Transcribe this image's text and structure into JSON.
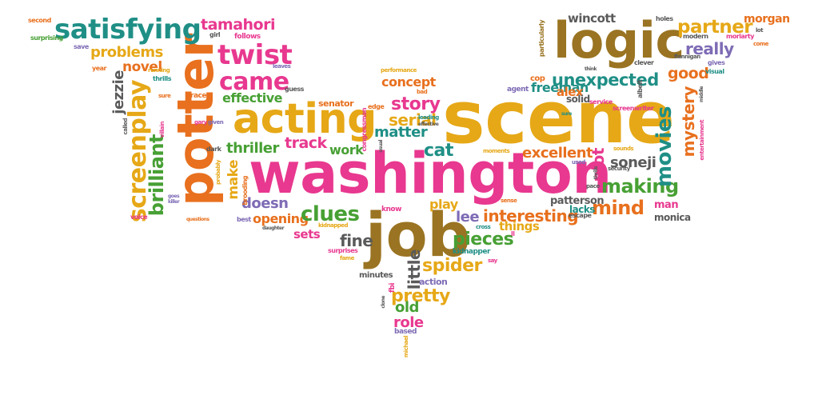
{
  "colors": {
    "pink": "#e8388f",
    "orange": "#e8701e",
    "gold": "#e6a817",
    "brown": "#9a7422",
    "green": "#47a034",
    "teal": "#1f8f86",
    "grey": "#5a5a5a",
    "purple": "#7e6bb5"
  },
  "words": [
    {
      "id": "scene",
      "text": "scene",
      "color": "gold"
    },
    {
      "id": "washington",
      "text": "washington",
      "color": "pink"
    },
    {
      "id": "potter",
      "text": "potter",
      "color": "orange"
    },
    {
      "id": "logic",
      "text": "logic",
      "color": "brown"
    },
    {
      "id": "job",
      "text": "job",
      "color": "brown"
    },
    {
      "id": "acting",
      "text": "acting",
      "color": "gold"
    },
    {
      "id": "satisfying",
      "text": "satisfying",
      "color": "teal"
    },
    {
      "id": "twist",
      "text": "twist",
      "color": "pink"
    },
    {
      "id": "came",
      "text": "came",
      "color": "pink"
    },
    {
      "id": "screenplay",
      "text": "screenplay",
      "color": "gold"
    },
    {
      "id": "brilliant",
      "text": "brilliant",
      "color": "green"
    },
    {
      "id": "tamahori",
      "text": "tamahori",
      "color": "pink"
    },
    {
      "id": "problems",
      "text": "problems",
      "color": "gold"
    },
    {
      "id": "novel",
      "text": "novel",
      "color": "orange"
    },
    {
      "id": "jezzie",
      "text": "jezzie",
      "color": "grey"
    },
    {
      "id": "effective",
      "text": "effective",
      "color": "green"
    },
    {
      "id": "thriller",
      "text": "thriller",
      "color": "green"
    },
    {
      "id": "track",
      "text": "track",
      "color": "pink"
    },
    {
      "id": "make",
      "text": "make",
      "color": "gold"
    },
    {
      "id": "doesn",
      "text": "doesn",
      "color": "purple"
    },
    {
      "id": "opening",
      "text": "opening",
      "color": "orange"
    },
    {
      "id": "clues",
      "text": "clues",
      "color": "green"
    },
    {
      "id": "sets",
      "text": "sets",
      "color": "pink"
    },
    {
      "id": "fine",
      "text": "fine",
      "color": "grey"
    },
    {
      "id": "little",
      "text": "little",
      "color": "grey"
    },
    {
      "id": "pieces",
      "text": "pieces",
      "color": "green"
    },
    {
      "id": "spider",
      "text": "spider",
      "color": "gold"
    },
    {
      "id": "pretty",
      "text": "pretty",
      "color": "gold"
    },
    {
      "id": "old",
      "text": "old",
      "color": "green"
    },
    {
      "id": "role",
      "text": "role",
      "color": "pink"
    },
    {
      "id": "story",
      "text": "story",
      "color": "pink"
    },
    {
      "id": "serial",
      "text": "serial",
      "color": "gold"
    },
    {
      "id": "matter",
      "text": "matter",
      "color": "teal"
    },
    {
      "id": "concept",
      "text": "concept",
      "color": "orange"
    },
    {
      "id": "work",
      "text": "work",
      "color": "green"
    },
    {
      "id": "cat",
      "text": "cat",
      "color": "teal"
    },
    {
      "id": "play",
      "text": "play",
      "color": "gold"
    },
    {
      "id": "lee",
      "text": "lee",
      "color": "purple"
    },
    {
      "id": "interesting",
      "text": "interesting",
      "color": "orange"
    },
    {
      "id": "things",
      "text": "things",
      "color": "gold"
    },
    {
      "id": "excellent",
      "text": "excellent",
      "color": "orange"
    },
    {
      "id": "plot",
      "text": "plot",
      "color": "pink"
    },
    {
      "id": "soneji",
      "text": "soneji",
      "color": "grey"
    },
    {
      "id": "making",
      "text": "making",
      "color": "green"
    },
    {
      "id": "mind",
      "text": "mind",
      "color": "orange"
    },
    {
      "id": "movies",
      "text": "movies",
      "color": "teal"
    },
    {
      "id": "mystery",
      "text": "mystery",
      "color": "orange"
    },
    {
      "id": "unexpected",
      "text": "unexpected",
      "color": "teal"
    },
    {
      "id": "freeman",
      "text": "freeman",
      "color": "teal"
    },
    {
      "id": "alex",
      "text": "alex",
      "color": "orange"
    },
    {
      "id": "solid",
      "text": "solid",
      "color": "grey"
    },
    {
      "id": "good",
      "text": "good",
      "color": "orange"
    },
    {
      "id": "really",
      "text": "really",
      "color": "purple"
    },
    {
      "id": "partner",
      "text": "partner",
      "color": "gold"
    },
    {
      "id": "wincott",
      "text": "wincott",
      "color": "grey"
    },
    {
      "id": "morgan",
      "text": "morgan",
      "color": "orange"
    },
    {
      "id": "patterson",
      "text": "patterson",
      "color": "grey"
    },
    {
      "id": "lacks",
      "text": "lacks",
      "color": "teal"
    },
    {
      "id": "man",
      "text": "man",
      "color": "pink"
    },
    {
      "id": "monica",
      "text": "monica",
      "color": "grey"
    },
    {
      "id": "kidnapper",
      "text": "kidnapper",
      "color": "teal"
    },
    {
      "id": "minutes",
      "text": "minutes",
      "color": "grey"
    },
    {
      "id": "action",
      "text": "action",
      "color": "purple"
    },
    {
      "id": "based",
      "text": "based",
      "color": "purple"
    },
    {
      "id": "senator",
      "text": "senator",
      "color": "orange"
    },
    {
      "id": "cop",
      "text": "cop",
      "color": "orange"
    },
    {
      "id": "agent",
      "text": "agent",
      "color": "purple"
    },
    {
      "id": "second",
      "text": "second",
      "color": "orange"
    },
    {
      "id": "surprising",
      "text": "surprising",
      "color": "green"
    },
    {
      "id": "save",
      "text": "save",
      "color": "purple"
    },
    {
      "id": "follows",
      "text": "follows",
      "color": "pink"
    },
    {
      "id": "girl",
      "text": "girl",
      "color": "grey"
    },
    {
      "id": "year",
      "text": "year",
      "color": "orange"
    },
    {
      "id": "running",
      "text": "running",
      "color": "gold"
    },
    {
      "id": "thrills",
      "text": "thrills",
      "color": "teal"
    },
    {
      "id": "performance",
      "text": "performance",
      "color": "gold"
    },
    {
      "id": "leaves",
      "text": "leaves",
      "color": "purple"
    },
    {
      "id": "guess",
      "text": "guess",
      "color": "grey"
    },
    {
      "id": "race",
      "text": "race",
      "color": "orange"
    },
    {
      "id": "sure",
      "text": "sure",
      "color": "orange"
    },
    {
      "id": "gary",
      "text": "gary",
      "color": "pink"
    },
    {
      "id": "given",
      "text": "given",
      "color": "purple"
    },
    {
      "id": "called",
      "text": "called",
      "color": "grey"
    },
    {
      "id": "villain",
      "text": "villain",
      "color": "pink"
    },
    {
      "id": "dark",
      "text": "dark",
      "color": "grey"
    },
    {
      "id": "probably",
      "text": "probably",
      "color": "gold"
    },
    {
      "id": "brooding",
      "text": "brooding",
      "color": "orange"
    },
    {
      "id": "killer",
      "text": "killer",
      "color": "purple"
    },
    {
      "id": "goes",
      "text": "goes",
      "color": "purple"
    },
    {
      "id": "best",
      "text": "best",
      "color": "purple"
    },
    {
      "id": "voice",
      "text": "voice",
      "color": "pink"
    },
    {
      "id": "questions",
      "text": "questions",
      "color": "orange"
    },
    {
      "id": "daughter",
      "text": "daughter",
      "color": "grey"
    },
    {
      "id": "kidnapped",
      "text": "kidnapped",
      "color": "gold"
    },
    {
      "id": "surprises",
      "text": "surprises",
      "color": "pink"
    },
    {
      "id": "fame",
      "text": "fame",
      "color": "gold"
    },
    {
      "id": "know",
      "text": "know",
      "color": "pink"
    },
    {
      "id": "bad",
      "text": "bad",
      "color": "orange"
    },
    {
      "id": "edge",
      "text": "edge",
      "color": "orange"
    },
    {
      "id": "leading",
      "text": "leading",
      "color": "teal"
    },
    {
      "id": "effective2",
      "text": "effective",
      "color": "grey"
    },
    {
      "id": "congressman",
      "text": "congressman",
      "color": "pink"
    },
    {
      "id": "usual",
      "text": "usual",
      "color": "grey"
    },
    {
      "id": "moments",
      "text": "moments",
      "color": "gold"
    },
    {
      "id": "sense",
      "text": "sense",
      "color": "orange"
    },
    {
      "id": "escape",
      "text": "escape",
      "color": "grey"
    },
    {
      "id": "cross",
      "text": "cross",
      "color": "teal"
    },
    {
      "id": "say",
      "text": "say",
      "color": "pink"
    },
    {
      "id": "ll",
      "text": "ll",
      "color": "pink"
    },
    {
      "id": "fbi",
      "text": "fbi",
      "color": "pink"
    },
    {
      "id": "clone",
      "text": "clone",
      "color": "grey"
    },
    {
      "id": "michael",
      "text": "michael",
      "color": "gold"
    },
    {
      "id": "think",
      "text": "think",
      "color": "grey"
    },
    {
      "id": "service",
      "text": "service",
      "color": "pink"
    },
    {
      "id": "screenwriter",
      "text": "screenwriter",
      "color": "pink"
    },
    {
      "id": "clever",
      "text": "clever",
      "color": "grey"
    },
    {
      "id": "albeit",
      "text": "albeit",
      "color": "grey"
    },
    {
      "id": "sounds",
      "text": "sounds",
      "color": "gold"
    },
    {
      "id": "security",
      "text": "security",
      "color": "grey"
    },
    {
      "id": "pace",
      "text": "pace",
      "color": "grey"
    },
    {
      "id": "thrills2",
      "text": "thrills",
      "color": "grey"
    },
    {
      "id": "used",
      "text": "used",
      "color": "purple"
    },
    {
      "id": "entertainment",
      "text": "entertainment",
      "color": "pink"
    },
    {
      "id": "middle",
      "text": "middle",
      "color": "grey"
    },
    {
      "id": "visual",
      "text": "visual",
      "color": "teal"
    },
    {
      "id": "gives",
      "text": "gives",
      "color": "purple"
    },
    {
      "id": "flannigan",
      "text": "flannigan",
      "color": "grey"
    },
    {
      "id": "modern",
      "text": "modern",
      "color": "grey"
    },
    {
      "id": "moriarty",
      "text": "moriarty",
      "color": "pink"
    },
    {
      "id": "come",
      "text": "come",
      "color": "orange"
    },
    {
      "id": "lot",
      "text": "lot",
      "color": "grey"
    },
    {
      "id": "holes",
      "text": "holes",
      "color": "grey"
    },
    {
      "id": "particularly",
      "text": "particularly",
      "color": "brown"
    },
    {
      "id": "sure2",
      "text": "sure",
      "color": "teal"
    }
  ]
}
